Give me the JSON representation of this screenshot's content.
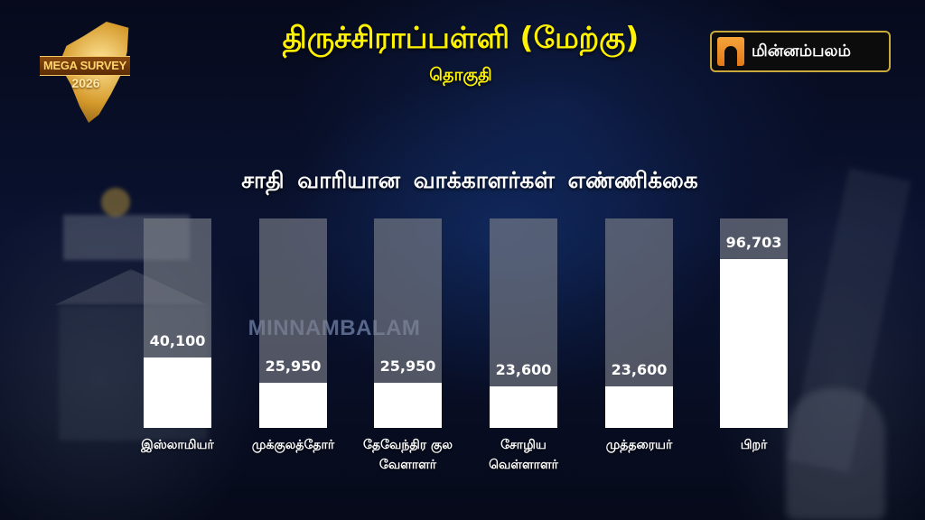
{
  "header": {
    "logo_badge": {
      "label": "MEGA SURVEY",
      "year": "2026"
    },
    "title": "திருச்சிராப்பள்ளி (மேற்கு)",
    "subtitle": "தொகுதி",
    "brand": {
      "name": "மின்னம்பலம்",
      "accent_color": "#f39a2e",
      "border_color": "#c9a93b"
    }
  },
  "watermark": "MINNAMBALAM",
  "colors": {
    "title_yellow": "#fff200",
    "bar_fill": "#ffffff",
    "bar_track": "#80828a"
  },
  "chart_data": {
    "type": "bar",
    "title": "சாதி வாரியான வாக்காளர்கள்  எண்ணிக்கை",
    "categories": [
      "இஸ்லாமியர்",
      "முக்குலத்தோர்",
      "தேவேந்திர குல வேளாளர்",
      "சோழிய வெள்ளாளர்",
      "முத்தரையர்",
      "பிறர்"
    ],
    "category_lines": [
      [
        "இஸ்லாமியர்"
      ],
      [
        "முக்குலத்தோர்"
      ],
      [
        "தேவேந்திர குல",
        "வேளாளர்"
      ],
      [
        "சோழிய",
        "வெள்ளாளர்"
      ],
      [
        "முத்தரையர்"
      ],
      [
        "பிறர்"
      ]
    ],
    "values": [
      40100,
      25950,
      25950,
      23600,
      23600,
      96703
    ],
    "value_labels": [
      "40,100",
      "25,950",
      "25,950",
      "23,600",
      "23,600",
      "96,703"
    ],
    "xlabel": "",
    "ylabel": "",
    "ylim": [
      0,
      120000
    ],
    "grid": false,
    "legend": "none"
  }
}
